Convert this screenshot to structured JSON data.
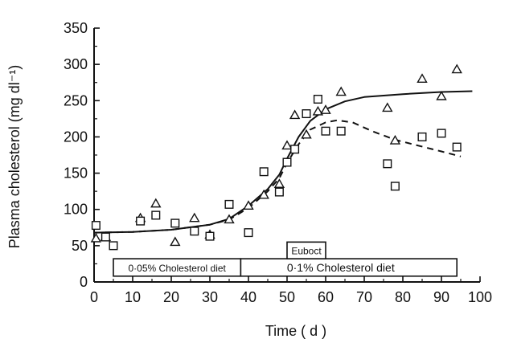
{
  "chart_data": {
    "type": "scatter",
    "xlabel": "Time ( d )",
    "ylabel": "Plasma cholesterol (mg dl⁻¹)",
    "xlim": [
      0,
      100
    ],
    "ylim": [
      0,
      350
    ],
    "x_ticks": [
      "0",
      "10",
      "20",
      "30",
      "40",
      "50",
      "60",
      "70",
      "80",
      "90",
      "100"
    ],
    "y_ticks": [
      "0",
      "50",
      "100",
      "150",
      "200",
      "250",
      "300",
      "350"
    ],
    "grid": false,
    "series": [
      {
        "marker": "triangle",
        "points": [
          [
            0.5,
            60
          ],
          [
            3,
            62
          ],
          [
            12,
            88
          ],
          [
            16,
            108
          ],
          [
            21,
            55
          ],
          [
            26,
            88
          ],
          [
            30,
            65
          ],
          [
            35,
            86
          ],
          [
            40,
            105
          ],
          [
            44,
            120
          ],
          [
            48,
            135
          ],
          [
            50,
            188
          ],
          [
            52,
            230
          ],
          [
            55,
            203
          ],
          [
            58,
            235
          ],
          [
            60,
            237
          ],
          [
            64,
            262
          ],
          [
            76,
            240
          ],
          [
            78,
            195
          ],
          [
            85,
            280
          ],
          [
            90,
            256
          ],
          [
            94,
            293
          ]
        ]
      },
      {
        "marker": "square",
        "points": [
          [
            0.5,
            78
          ],
          [
            3,
            62
          ],
          [
            5,
            50
          ],
          [
            12,
            84
          ],
          [
            16,
            92
          ],
          [
            21,
            81
          ],
          [
            26,
            70
          ],
          [
            30,
            63
          ],
          [
            35,
            107
          ],
          [
            40,
            68
          ],
          [
            44,
            152
          ],
          [
            48,
            124
          ],
          [
            50,
            165
          ],
          [
            52,
            183
          ],
          [
            55,
            232
          ],
          [
            58,
            252
          ],
          [
            60,
            208
          ],
          [
            64,
            208
          ],
          [
            76,
            163
          ],
          [
            78,
            132
          ],
          [
            85,
            200
          ],
          [
            90,
            205
          ],
          [
            94,
            186
          ]
        ]
      },
      {
        "line": "solid",
        "points": [
          [
            0,
            68
          ],
          [
            10,
            69
          ],
          [
            20,
            72
          ],
          [
            30,
            79
          ],
          [
            35,
            87
          ],
          [
            40,
            105
          ],
          [
            45,
            128
          ],
          [
            48,
            148
          ],
          [
            50,
            170
          ],
          [
            53,
            200
          ],
          [
            56,
            222
          ],
          [
            60,
            238
          ],
          [
            65,
            249
          ],
          [
            70,
            255
          ],
          [
            80,
            259
          ],
          [
            90,
            262
          ],
          [
            98,
            263
          ]
        ]
      },
      {
        "line": "dashed",
        "points": [
          [
            0,
            68
          ],
          [
            10,
            69
          ],
          [
            20,
            72
          ],
          [
            30,
            79
          ],
          [
            35,
            86
          ],
          [
            40,
            102
          ],
          [
            45,
            125
          ],
          [
            48,
            143
          ],
          [
            50,
            164
          ],
          [
            53,
            190
          ],
          [
            56,
            210
          ],
          [
            60,
            220
          ],
          [
            63,
            223
          ],
          [
            67,
            220
          ],
          [
            72,
            208
          ],
          [
            78,
            196
          ],
          [
            84,
            188
          ],
          [
            90,
            180
          ],
          [
            95,
            173
          ]
        ]
      }
    ],
    "annotations": {
      "euboct": {
        "label": "Euboct",
        "x_start": 50,
        "x_end": 60
      },
      "diet_low": {
        "label": "0·05% Cholesterol diet",
        "x_start": 5,
        "x_end": 38
      },
      "diet_high": {
        "label": "0·1% Cholesterol diet",
        "x_start": 38,
        "x_end": 94
      }
    }
  }
}
